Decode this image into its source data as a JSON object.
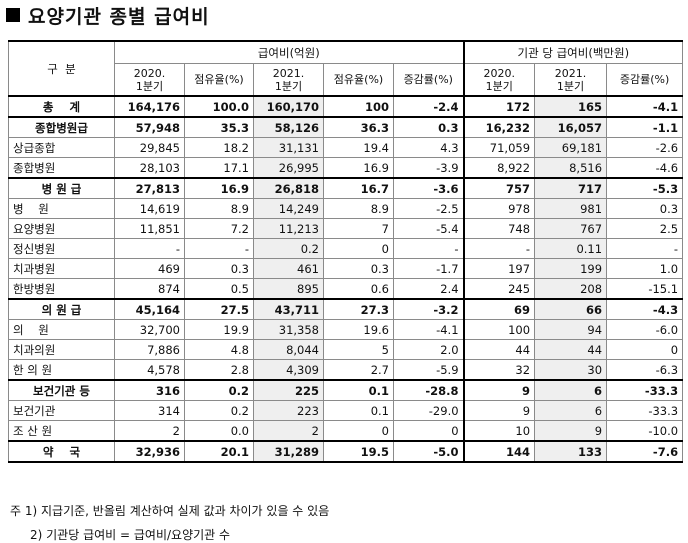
{
  "title": "요양기관 종별 급여비",
  "header": {
    "category": "구  분",
    "group1": "급여비(억원)",
    "group2": "기관 당 급여비(백만원)",
    "sub": [
      "2020.\n1분기",
      "점유율(%)",
      "2021.\n1분기",
      "점유율(%)",
      "증감률(%)",
      "2020.\n1분기",
      "2021.\n1분기",
      "증감률(%)"
    ],
    "sub_lines": [
      [
        "2020.",
        "1분기"
      ],
      [
        "점유율(%)"
      ],
      [
        "2021.",
        "1분기"
      ],
      [
        "점유율(%)"
      ],
      [
        "증감률(%)"
      ],
      [
        "2020.",
        "1분기"
      ],
      [
        "2021.",
        "1분기"
      ],
      [
        "증감률(%)"
      ]
    ]
  },
  "rows": [
    {
      "label": "총    계",
      "bold": true,
      "values": [
        "164,176",
        "100.0",
        "160,170",
        "100",
        "-2.4",
        "172",
        "165",
        "-4.1"
      ]
    },
    {
      "label": "종합병원급",
      "bold": true,
      "values": [
        "57,948",
        "35.3",
        "58,126",
        "36.3",
        "0.3",
        "16,232",
        "16,057",
        "-1.1"
      ]
    },
    {
      "label": "상급종합",
      "bold": false,
      "values": [
        "29,845",
        "18.2",
        "31,131",
        "19.4",
        "4.3",
        "71,059",
        "69,181",
        "-2.6"
      ]
    },
    {
      "label": "종합병원",
      "bold": false,
      "values": [
        "28,103",
        "17.1",
        "26,995",
        "16.9",
        "-3.9",
        "8,922",
        "8,516",
        "-4.6"
      ]
    },
    {
      "label": "병 원 급",
      "bold": true,
      "values": [
        "27,813",
        "16.9",
        "26,818",
        "16.7",
        "-3.6",
        "757",
        "717",
        "-5.3"
      ]
    },
    {
      "label": "병    원",
      "bold": false,
      "values": [
        "14,619",
        "8.9",
        "14,249",
        "8.9",
        "-2.5",
        "978",
        "981",
        "0.3"
      ]
    },
    {
      "label": "요양병원",
      "bold": false,
      "values": [
        "11,851",
        "7.2",
        "11,213",
        "7",
        "-5.4",
        "748",
        "767",
        "2.5"
      ]
    },
    {
      "label": "정신병원",
      "bold": false,
      "values": [
        "-",
        "-",
        "0.2",
        "0",
        "-",
        "-",
        "0.11",
        "-"
      ]
    },
    {
      "label": "치과병원",
      "bold": false,
      "values": [
        "469",
        "0.3",
        "461",
        "0.3",
        "-1.7",
        "197",
        "199",
        "1.0"
      ]
    },
    {
      "label": "한방병원",
      "bold": false,
      "values": [
        "874",
        "0.5",
        "895",
        "0.6",
        "2.4",
        "245",
        "208",
        "-15.1"
      ]
    },
    {
      "label": "의 원 급",
      "bold": true,
      "values": [
        "45,164",
        "27.5",
        "43,711",
        "27.3",
        "-3.2",
        "69",
        "66",
        "-4.3"
      ]
    },
    {
      "label": "의    원",
      "bold": false,
      "values": [
        "32,700",
        "19.9",
        "31,358",
        "19.6",
        "-4.1",
        "100",
        "94",
        "-6.0"
      ]
    },
    {
      "label": "치과의원",
      "bold": false,
      "values": [
        "7,886",
        "4.8",
        "8,044",
        "5",
        "2.0",
        "44",
        "44",
        "0"
      ]
    },
    {
      "label": "한 의 원",
      "bold": false,
      "values": [
        "4,578",
        "2.8",
        "4,309",
        "2.7",
        "-5.9",
        "32",
        "30",
        "-6.3"
      ]
    },
    {
      "label": "보건기관 등",
      "bold": true,
      "values": [
        "316",
        "0.2",
        "225",
        "0.1",
        "-28.8",
        "9",
        "6",
        "-33.3"
      ]
    },
    {
      "label": "보건기관",
      "bold": false,
      "values": [
        "314",
        "0.2",
        "223",
        "0.1",
        "-29.0",
        "9",
        "6",
        "-33.3"
      ]
    },
    {
      "label": "조 산 원",
      "bold": false,
      "values": [
        "2",
        "0.0",
        "2",
        "0",
        "0",
        "10",
        "9",
        "-10.0"
      ]
    },
    {
      "label": "약    국",
      "bold": true,
      "values": [
        "32,936",
        "20.1",
        "31,289",
        "19.5",
        "-5.0",
        "144",
        "133",
        "-7.6"
      ]
    }
  ],
  "notes": [
    "주 1) 지급기준, 반올림 계산하여 실제 값과 차이가 있을 수 있음",
    "2) 기관당 급여비 = 급여비/요양기관 수"
  ]
}
